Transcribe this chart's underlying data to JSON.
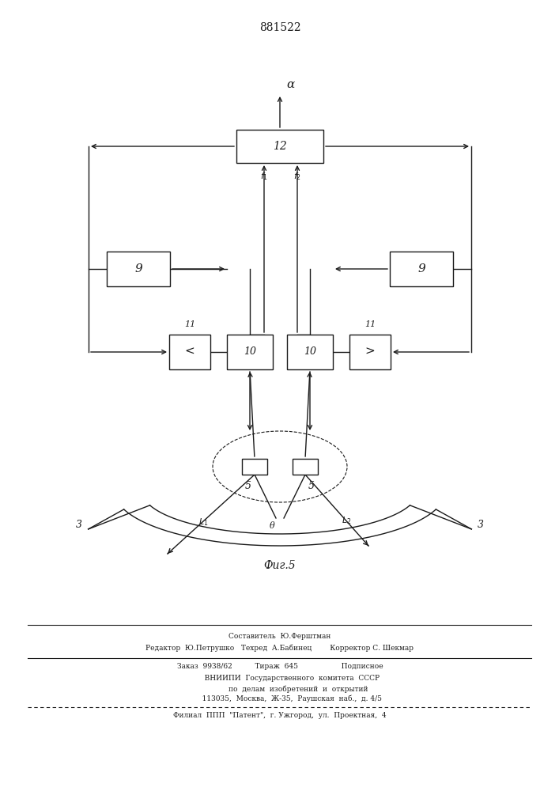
{
  "title": "881522",
  "fig_label": "Фиг.5",
  "bg_color": "#ffffff",
  "line_color": "#1a1a1a",
  "footer_lines": [
    "Составитель  Ю.Ферштман",
    "Редактор  Ю.Петрушко   Техред  А.Бабинец        Корректор С. Шекмар",
    "Заказ  9938/62          Тираж  645                   Подписное",
    "           ВНИИПИ  Государственного  комитета  СССР",
    "                по  делам  изобретений  и  открытий",
    "           113035,  Москва,  Ж-35,  Раушская  наб.,  д. 4/5",
    "Филиал  ППП  \"Патент\",  г. Ужгород,  ул.  Проектная,  4"
  ]
}
